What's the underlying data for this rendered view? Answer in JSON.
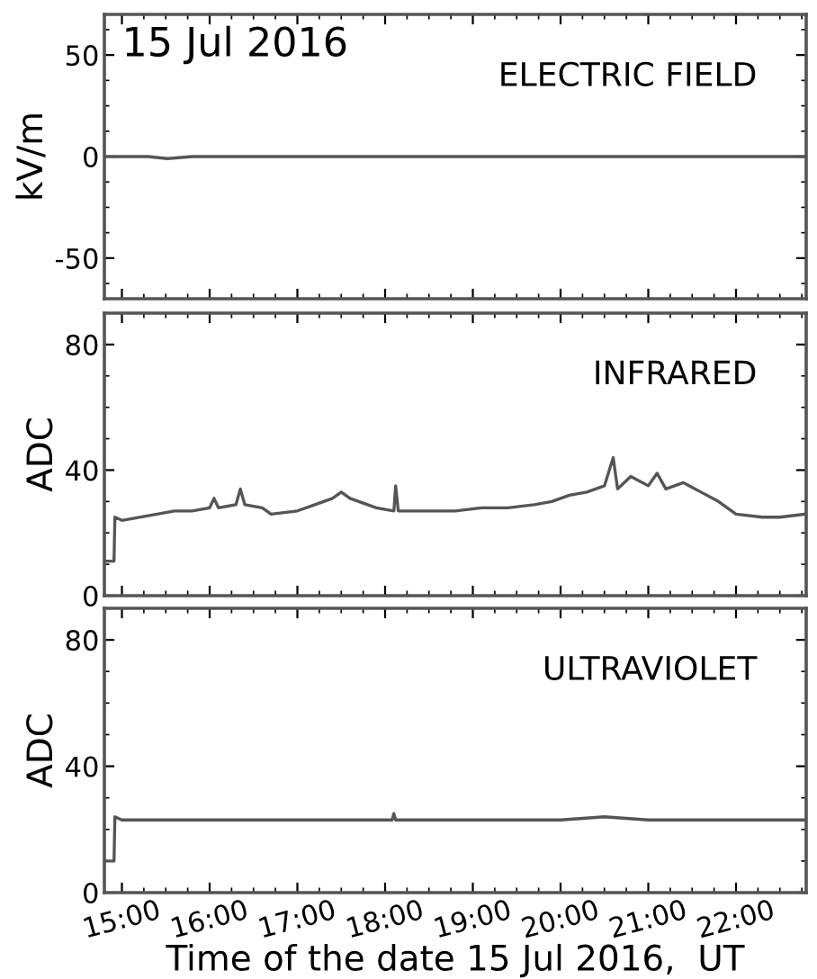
{
  "chart_data": [
    {
      "type": "line",
      "ylabel": "kV/m",
      "annotations": [
        "15 Jul 2016",
        "ELECTRIC FIELD"
      ],
      "tick_labels": "y",
      "xlim": [
        14.8,
        22.8
      ],
      "xticks": [
        {
          "value": 15,
          "label": null
        },
        {
          "value": 16,
          "label": null
        },
        {
          "value": 17,
          "label": null
        },
        {
          "value": 18,
          "label": null
        },
        {
          "value": 19,
          "label": null
        },
        {
          "value": 20,
          "label": null
        },
        {
          "value": 21,
          "label": null
        },
        {
          "value": 22,
          "label": null
        }
      ],
      "ylim": [
        -70,
        70
      ],
      "yticks": [
        -50,
        0,
        50
      ],
      "series": [
        {
          "color": "#555555",
          "x": [
            14.8,
            15.3,
            15.52,
            15.8,
            16.5,
            18.0,
            20.0,
            22.8
          ],
          "values": [
            0,
            0,
            -1,
            0,
            0,
            0,
            0,
            0
          ]
        }
      ]
    },
    {
      "type": "line",
      "ylabel": "ADC",
      "annotations": [
        "INFRARED"
      ],
      "tick_labels": "y",
      "xlim": [
        14.8,
        22.8
      ],
      "xticks": [
        {
          "value": 15,
          "label": null
        },
        {
          "value": 16,
          "label": null
        },
        {
          "value": 17,
          "label": null
        },
        {
          "value": 18,
          "label": null
        },
        {
          "value": 19,
          "label": null
        },
        {
          "value": 20,
          "label": null
        },
        {
          "value": 21,
          "label": null
        },
        {
          "value": 22,
          "label": null
        }
      ],
      "ylim": [
        0,
        90
      ],
      "yticks": [
        0,
        40,
        80
      ],
      "series": [
        {
          "color": "#555555",
          "x": [
            14.8,
            14.91,
            14.92,
            15.0,
            15.2,
            15.4,
            15.6,
            15.8,
            16.0,
            16.05,
            16.1,
            16.3,
            16.35,
            16.4,
            16.6,
            16.7,
            17.0,
            17.2,
            17.4,
            17.5,
            17.6,
            17.9,
            18.1,
            18.12,
            18.15,
            18.5,
            18.8,
            19.1,
            19.4,
            19.7,
            19.9,
            20.1,
            20.3,
            20.5,
            20.6,
            20.65,
            20.8,
            21.0,
            21.1,
            21.2,
            21.4,
            21.6,
            21.8,
            22.0,
            22.3,
            22.5,
            22.8
          ],
          "values": [
            11,
            11,
            25,
            24,
            25,
            26,
            27,
            27,
            28,
            31,
            28,
            29,
            34,
            29,
            28,
            26,
            27,
            29,
            31,
            33,
            31,
            28,
            27,
            35,
            27,
            27,
            27,
            28,
            28,
            29,
            30,
            32,
            33,
            35,
            44,
            34,
            38,
            35,
            39,
            34,
            36,
            33,
            30,
            26,
            25,
            25,
            26
          ]
        }
      ]
    },
    {
      "type": "line",
      "ylabel": "ADC",
      "xlabel": "Time of the date 15 Jul 2016,  UT",
      "annotations": [
        "ULTRAVIOLET"
      ],
      "xlim": [
        14.8,
        22.8
      ],
      "xticks": [
        {
          "value": 15,
          "label": "15:00"
        },
        {
          "value": 16,
          "label": "16:00"
        },
        {
          "value": 17,
          "label": "17:00"
        },
        {
          "value": 18,
          "label": "18:00"
        },
        {
          "value": 19,
          "label": "19:00"
        },
        {
          "value": 20,
          "label": "20:00"
        },
        {
          "value": 21,
          "label": "21:00"
        },
        {
          "value": 22,
          "label": "22:00"
        }
      ],
      "ylim": [
        0,
        90
      ],
      "yticks": [
        0,
        40,
        80
      ],
      "series": [
        {
          "color": "#555555",
          "x": [
            14.8,
            14.91,
            14.92,
            15.0,
            15.5,
            16.5,
            17.5,
            18.08,
            18.1,
            18.12,
            19.0,
            20.0,
            20.5,
            21.0,
            22.0,
            22.5,
            22.8
          ],
          "values": [
            10,
            10,
            24,
            23,
            23,
            23,
            23,
            23,
            25,
            23,
            23,
            23,
            24,
            23,
            23,
            23,
            23
          ]
        }
      ]
    }
  ]
}
